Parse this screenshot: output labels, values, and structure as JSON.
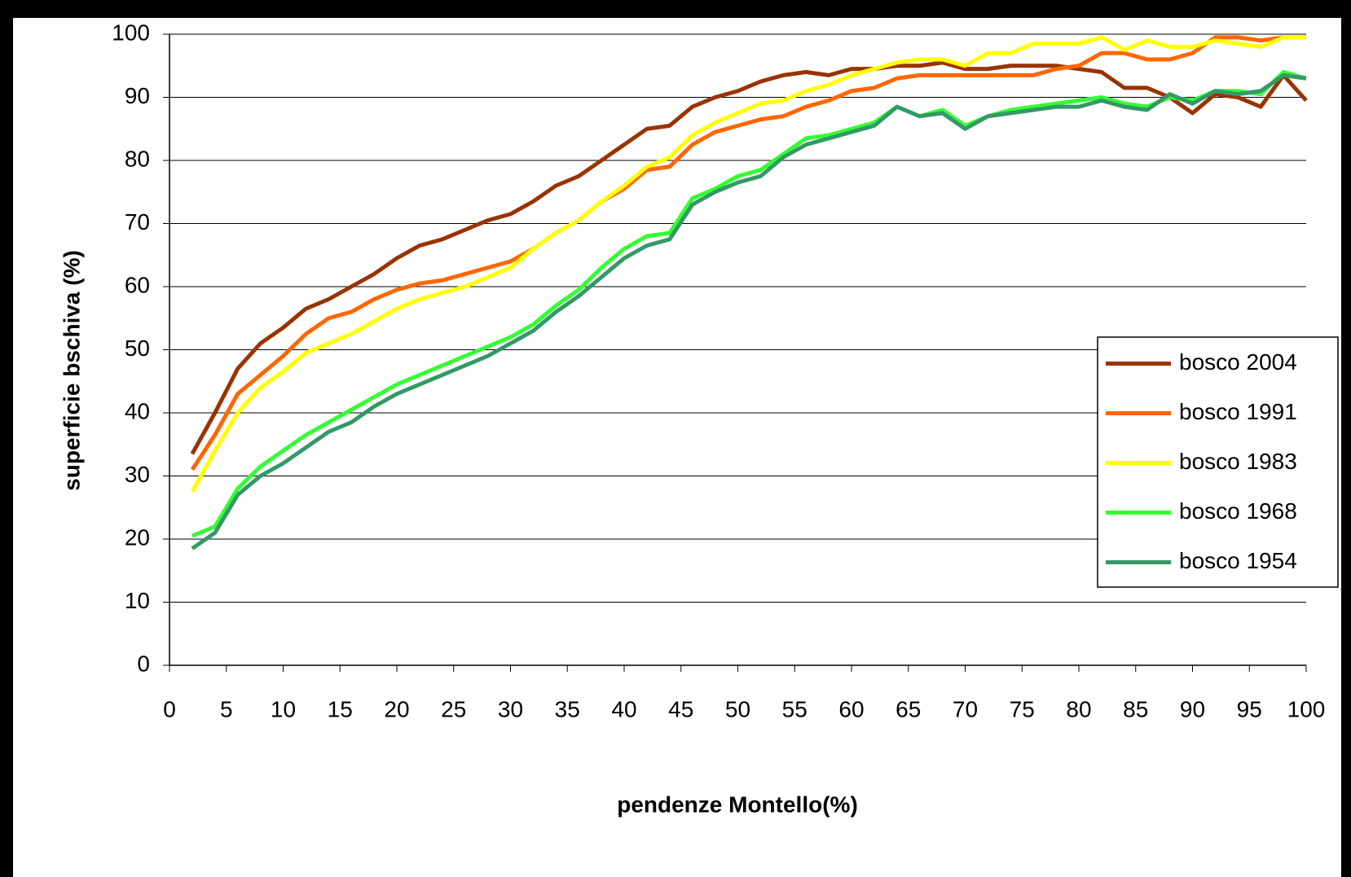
{
  "chart_data": {
    "type": "line",
    "xlabel": "pendenze Montello(%)",
    "ylabel": "superficie bschiva (%)",
    "x": [
      2,
      4,
      6,
      8,
      10,
      12,
      14,
      16,
      18,
      20,
      22,
      24,
      26,
      28,
      30,
      32,
      34,
      36,
      38,
      40,
      42,
      44,
      46,
      48,
      50,
      52,
      54,
      56,
      58,
      60,
      62,
      64,
      66,
      68,
      70,
      72,
      74,
      76,
      78,
      80,
      82,
      84,
      86,
      88,
      90,
      92,
      94,
      96,
      98,
      100
    ],
    "series": [
      {
        "name": "bosco 2004",
        "color": "#993300",
        "values": [
          33.5,
          40,
          47,
          51,
          53.5,
          56.5,
          58,
          60,
          62,
          64.5,
          66.5,
          67.5,
          69,
          70.5,
          71.5,
          73.5,
          76,
          77.5,
          80,
          82.5,
          85,
          85.5,
          88.5,
          90,
          91,
          92.5,
          93.5,
          94,
          93.5,
          94.5,
          94.5,
          95,
          95,
          95.5,
          94.5,
          94.5,
          95,
          95,
          95,
          94.5,
          94,
          91.5,
          91.5,
          90,
          87.5,
          90.5,
          90,
          88.5,
          93.5,
          89.5
        ]
      },
      {
        "name": "bosco 1991",
        "color": "#ff6600",
        "values": [
          31,
          36.5,
          43,
          46,
          49,
          52.5,
          55,
          56,
          58,
          59.5,
          60.5,
          61,
          62,
          63,
          64,
          66,
          68.5,
          70.5,
          73.5,
          75.5,
          78.5,
          79,
          82.5,
          84.5,
          85.5,
          86.5,
          87,
          88.5,
          89.5,
          91,
          91.5,
          93,
          93.5,
          93.5,
          93.5,
          93.5,
          93.5,
          93.5,
          94.5,
          95,
          97,
          97,
          96,
          96,
          97,
          99.5,
          99.5,
          99,
          99.5,
          99.5
        ]
      },
      {
        "name": "bosco 1983",
        "color": "#ffff00",
        "values": [
          27.5,
          34,
          40,
          44,
          46.5,
          49.5,
          51,
          52.5,
          54.5,
          56.5,
          58,
          59,
          60,
          61.5,
          63,
          66,
          68.5,
          70.5,
          73.5,
          76,
          79,
          80.5,
          84,
          86,
          87.5,
          89,
          89.5,
          91,
          92,
          93.5,
          94.5,
          95.5,
          96,
          96,
          95,
          97,
          97,
          98.5,
          98.5,
          98.5,
          99.5,
          97.5,
          99,
          98,
          98,
          99,
          98.5,
          98,
          99.5,
          99.5
        ]
      },
      {
        "name": "bosco 1968",
        "color": "#33ff33",
        "values": [
          20.5,
          22,
          28,
          31.5,
          34,
          36.5,
          38.5,
          40.5,
          42.5,
          44.5,
          46,
          47.5,
          49,
          50.5,
          52,
          54,
          57,
          59.5,
          63,
          66,
          68,
          68.5,
          74,
          75.5,
          77.5,
          78.5,
          81,
          83.5,
          84,
          85,
          86,
          88.5,
          87,
          88,
          85.5,
          87,
          88,
          88.5,
          89,
          89.5,
          90,
          89,
          88.5,
          90,
          89.5,
          91,
          91,
          90.5,
          94,
          93
        ]
      },
      {
        "name": "bosco 1954",
        "color": "#339966",
        "values": [
          18.5,
          21,
          27,
          30,
          32,
          34.5,
          37,
          38.5,
          41,
          43,
          44.5,
          46,
          47.5,
          49,
          51,
          53,
          56,
          58.5,
          61.5,
          64.5,
          66.5,
          67.5,
          73,
          75,
          76.5,
          77.5,
          80.5,
          82.5,
          83.5,
          84.5,
          85.5,
          88.5,
          87,
          87.5,
          85,
          87,
          87.5,
          88,
          88.5,
          88.5,
          89.5,
          88.5,
          88,
          90.5,
          89,
          91,
          90.5,
          91,
          93.5,
          93
        ]
      }
    ],
    "xlim": [
      0,
      100
    ],
    "xticks": [
      0,
      5,
      10,
      15,
      20,
      25,
      30,
      35,
      40,
      45,
      50,
      55,
      60,
      65,
      70,
      75,
      80,
      85,
      90,
      95,
      100
    ],
    "ylim": [
      0,
      100
    ],
    "yticks": [
      0,
      10,
      20,
      30,
      40,
      50,
      60,
      70,
      80,
      90,
      100
    ],
    "grid": true,
    "legend": "right"
  }
}
